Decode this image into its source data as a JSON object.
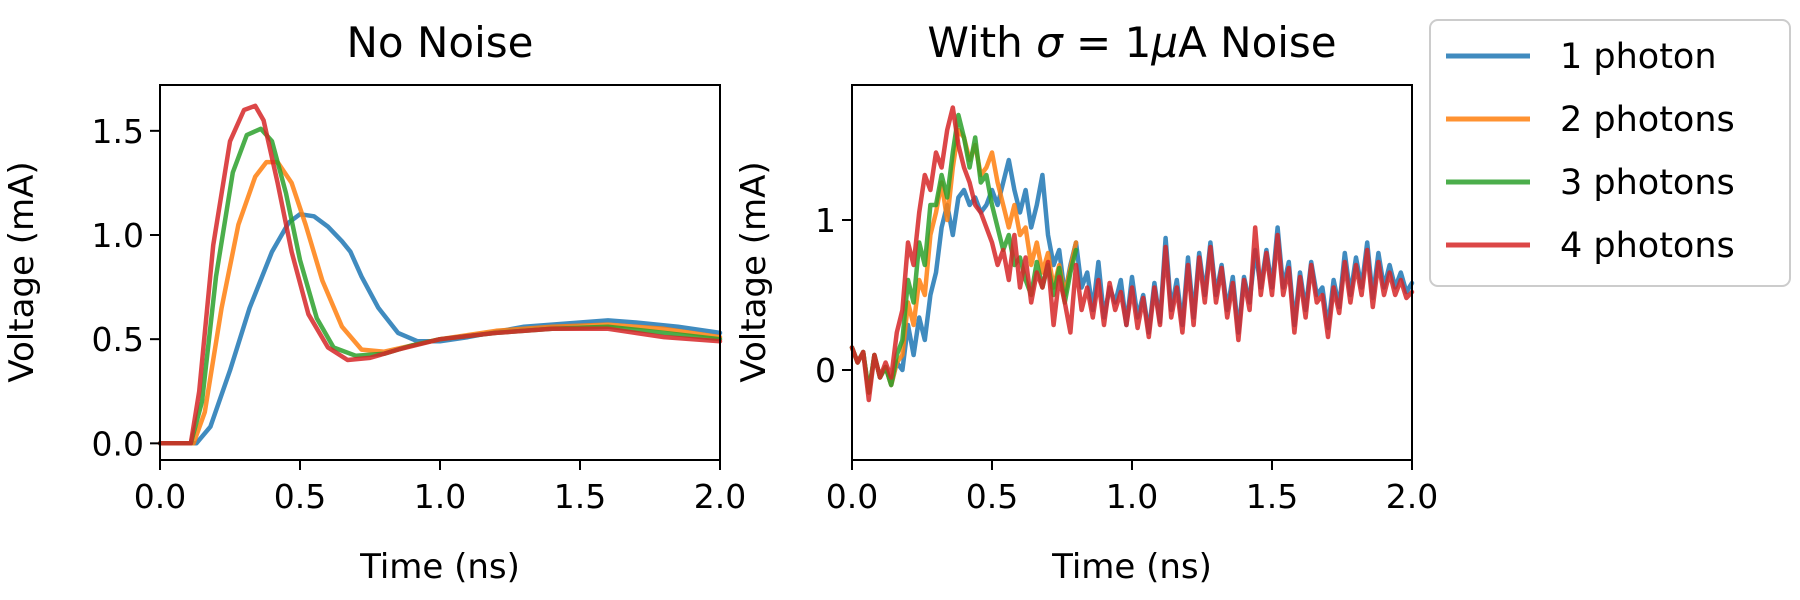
{
  "chart_data": [
    {
      "type": "line",
      "title": "No Noise",
      "xlabel": "Time (ns)",
      "ylabel": "Voltage (mA)",
      "xlim": [
        0,
        2.0
      ],
      "ylim": [
        -0.08,
        1.72
      ],
      "xticks": [
        0.0,
        0.5,
        1.0,
        1.5,
        2.0
      ],
      "xtick_labels": [
        "0.0",
        "0.5",
        "1.0",
        "1.5",
        "2.0"
      ],
      "yticks": [
        0.0,
        0.5,
        1.0,
        1.5
      ],
      "ytick_labels": [
        "0.0",
        "0.5",
        "1.0",
        "1.5"
      ],
      "grid": false,
      "series": [
        {
          "name": "1 photon",
          "color": "#1f77b4",
          "x": [
            0,
            0.13,
            0.18,
            0.25,
            0.32,
            0.4,
            0.46,
            0.5,
            0.55,
            0.6,
            0.65,
            0.68,
            0.72,
            0.78,
            0.85,
            0.92,
            1.0,
            1.1,
            1.3,
            1.5,
            1.6,
            1.7,
            1.85,
            2.0
          ],
          "y": [
            0,
            0.0,
            0.08,
            0.35,
            0.65,
            0.92,
            1.06,
            1.1,
            1.09,
            1.04,
            0.97,
            0.92,
            0.8,
            0.65,
            0.53,
            0.49,
            0.49,
            0.51,
            0.56,
            0.58,
            0.59,
            0.58,
            0.56,
            0.53
          ]
        },
        {
          "name": "2 photons",
          "color": "#ff7f0e",
          "x": [
            0,
            0.12,
            0.16,
            0.22,
            0.28,
            0.34,
            0.38,
            0.42,
            0.47,
            0.52,
            0.58,
            0.65,
            0.72,
            0.8,
            0.9,
            1.0,
            1.2,
            1.4,
            1.6,
            1.8,
            2.0
          ],
          "y": [
            0,
            0.0,
            0.15,
            0.65,
            1.05,
            1.28,
            1.35,
            1.35,
            1.25,
            1.05,
            0.78,
            0.56,
            0.45,
            0.44,
            0.47,
            0.5,
            0.54,
            0.56,
            0.57,
            0.55,
            0.51
          ]
        },
        {
          "name": "3 photons",
          "color": "#2ca02c",
          "x": [
            0,
            0.11,
            0.15,
            0.2,
            0.26,
            0.31,
            0.36,
            0.4,
            0.45,
            0.5,
            0.56,
            0.62,
            0.7,
            0.8,
            0.9,
            1.0,
            1.2,
            1.4,
            1.6,
            1.8,
            2.0
          ],
          "y": [
            0,
            0.0,
            0.2,
            0.8,
            1.3,
            1.48,
            1.51,
            1.45,
            1.2,
            0.88,
            0.6,
            0.46,
            0.42,
            0.43,
            0.47,
            0.5,
            0.53,
            0.55,
            0.56,
            0.53,
            0.5
          ]
        },
        {
          "name": "4 photons",
          "color": "#d62728",
          "x": [
            0,
            0.11,
            0.14,
            0.19,
            0.25,
            0.3,
            0.34,
            0.37,
            0.42,
            0.47,
            0.53,
            0.6,
            0.67,
            0.75,
            0.85,
            1.0,
            1.2,
            1.4,
            1.6,
            1.8,
            2.0
          ],
          "y": [
            0,
            0.0,
            0.25,
            0.95,
            1.45,
            1.6,
            1.62,
            1.55,
            1.25,
            0.92,
            0.62,
            0.46,
            0.4,
            0.41,
            0.45,
            0.5,
            0.53,
            0.55,
            0.55,
            0.51,
            0.49
          ]
        }
      ]
    },
    {
      "type": "line",
      "title": "With",
      "title_sigma": "σ",
      "title_mid": " = 1",
      "title_mu": "μ",
      "title_end": "A Noise",
      "xlabel": "Time (ns)",
      "ylabel": "Voltage (mA)",
      "xlim": [
        0,
        2.0
      ],
      "ylim": [
        -0.6,
        1.9
      ],
      "xticks": [
        0.0,
        0.5,
        1.0,
        1.5,
        2.0
      ],
      "xtick_labels": [
        "0.0",
        "0.5",
        "1.0",
        "1.5",
        "2.0"
      ],
      "yticks": [
        0,
        1
      ],
      "ytick_labels": [
        "0",
        "1"
      ],
      "grid": false,
      "series": [
        {
          "name": "1 photon",
          "color": "#1f77b4",
          "x": [
            0,
            0.02,
            0.04,
            0.06,
            0.08,
            0.1,
            0.12,
            0.14,
            0.16,
            0.18,
            0.2,
            0.22,
            0.24,
            0.26,
            0.28,
            0.3,
            0.32,
            0.34,
            0.36,
            0.38,
            0.4,
            0.42,
            0.44,
            0.46,
            0.48,
            0.5,
            0.52,
            0.54,
            0.56,
            0.58,
            0.6,
            0.62,
            0.64,
            0.66,
            0.68,
            0.7,
            0.72,
            0.74,
            0.76,
            0.78,
            0.8,
            0.82,
            0.84,
            0.86,
            0.88,
            0.9,
            0.92,
            0.94,
            0.96,
            0.98,
            1.0,
            1.02,
            1.04,
            1.06,
            1.08,
            1.1,
            1.12,
            1.14,
            1.16,
            1.18,
            1.2,
            1.22,
            1.24,
            1.26,
            1.28,
            1.3,
            1.32,
            1.34,
            1.36,
            1.38,
            1.4,
            1.42,
            1.44,
            1.46,
            1.48,
            1.5,
            1.52,
            1.54,
            1.56,
            1.58,
            1.6,
            1.62,
            1.64,
            1.66,
            1.68,
            1.7,
            1.72,
            1.74,
            1.76,
            1.78,
            1.8,
            1.82,
            1.84,
            1.86,
            1.88,
            1.9,
            1.92,
            1.94,
            1.96,
            1.98,
            2.0
          ],
          "y": [
            0.15,
            0.05,
            0.12,
            -0.15,
            0.1,
            -0.05,
            0.02,
            -0.1,
            0.05,
            0.0,
            0.3,
            0.1,
            0.35,
            0.2,
            0.5,
            0.65,
            0.95,
            1.1,
            0.9,
            1.15,
            1.2,
            1.1,
            1.15,
            1.05,
            1.1,
            1.2,
            1.1,
            1.25,
            1.4,
            1.2,
            1.05,
            1.2,
            0.95,
            1.1,
            1.3,
            0.9,
            0.7,
            0.8,
            0.5,
            0.7,
            0.85,
            0.55,
            0.65,
            0.4,
            0.72,
            0.35,
            0.55,
            0.45,
            0.6,
            0.3,
            0.62,
            0.35,
            0.5,
            0.25,
            0.58,
            0.32,
            0.88,
            0.4,
            0.6,
            0.3,
            0.75,
            0.35,
            0.78,
            0.5,
            0.85,
            0.5,
            0.7,
            0.4,
            0.62,
            0.25,
            0.62,
            0.45,
            0.8,
            0.55,
            0.8,
            0.55,
            0.95,
            0.55,
            0.72,
            0.3,
            0.65,
            0.4,
            0.72,
            0.5,
            0.55,
            0.28,
            0.6,
            0.42,
            0.78,
            0.5,
            0.75,
            0.55,
            0.85,
            0.48,
            0.78,
            0.55,
            0.7,
            0.55,
            0.65,
            0.52,
            0.58
          ]
        },
        {
          "name": "2 photons",
          "color": "#ff7f0e",
          "x": [
            0,
            0.02,
            0.04,
            0.06,
            0.08,
            0.1,
            0.12,
            0.14,
            0.16,
            0.18,
            0.2,
            0.22,
            0.24,
            0.26,
            0.28,
            0.3,
            0.32,
            0.34,
            0.36,
            0.38,
            0.4,
            0.42,
            0.44,
            0.46,
            0.48,
            0.5,
            0.52,
            0.54,
            0.56,
            0.58,
            0.6,
            0.62,
            0.64,
            0.66,
            0.68,
            0.7,
            0.72,
            0.74,
            0.76,
            0.78,
            0.8
          ],
          "y": [
            0.15,
            0.05,
            0.12,
            -0.15,
            0.1,
            -0.05,
            0.02,
            -0.1,
            0.05,
            0.1,
            0.45,
            0.3,
            0.6,
            0.5,
            0.9,
            1.05,
            1.25,
            1.0,
            1.35,
            1.6,
            1.55,
            1.4,
            1.5,
            1.3,
            1.35,
            1.45,
            1.25,
            1.1,
            0.95,
            1.1,
            0.9,
            0.95,
            0.7,
            0.85,
            0.65,
            0.78,
            0.55,
            0.7,
            0.5,
            0.68,
            0.85
          ]
        },
        {
          "name": "3 photons",
          "color": "#2ca02c",
          "x": [
            0,
            0.02,
            0.04,
            0.06,
            0.08,
            0.1,
            0.12,
            0.14,
            0.16,
            0.18,
            0.2,
            0.22,
            0.24,
            0.26,
            0.28,
            0.3,
            0.32,
            0.34,
            0.36,
            0.38,
            0.4,
            0.42,
            0.44,
            0.46,
            0.48,
            0.5,
            0.52,
            0.54,
            0.56,
            0.58,
            0.6,
            0.62,
            0.64,
            0.66,
            0.68,
            0.7,
            0.72,
            0.74,
            0.76,
            0.78,
            0.8
          ],
          "y": [
            0.15,
            0.05,
            0.12,
            -0.15,
            0.1,
            -0.05,
            0.02,
            -0.1,
            0.1,
            0.2,
            0.6,
            0.45,
            0.85,
            0.7,
            1.1,
            1.1,
            1.3,
            1.15,
            1.45,
            1.7,
            1.55,
            1.35,
            1.55,
            1.25,
            1.3,
            1.1,
            0.95,
            0.8,
            0.9,
            0.7,
            0.75,
            0.6,
            0.5,
            0.72,
            0.55,
            0.7,
            0.5,
            0.68,
            0.45,
            0.65,
            0.8
          ]
        },
        {
          "name": "4 photons",
          "color": "#d62728",
          "x": [
            0,
            0.02,
            0.04,
            0.06,
            0.08,
            0.1,
            0.12,
            0.14,
            0.16,
            0.18,
            0.2,
            0.22,
            0.24,
            0.26,
            0.28,
            0.3,
            0.32,
            0.34,
            0.36,
            0.38,
            0.4,
            0.42,
            0.44,
            0.46,
            0.48,
            0.5,
            0.52,
            0.54,
            0.56,
            0.58,
            0.6,
            0.62,
            0.64,
            0.66,
            0.68,
            0.7,
            0.72,
            0.74,
            0.76,
            0.78,
            0.8,
            0.82,
            0.84,
            0.86,
            0.88,
            0.9,
            0.92,
            0.94,
            0.96,
            0.98,
            1.0,
            1.02,
            1.04,
            1.06,
            1.08,
            1.1,
            1.12,
            1.14,
            1.16,
            1.18,
            1.2,
            1.22,
            1.24,
            1.26,
            1.28,
            1.3,
            1.32,
            1.34,
            1.36,
            1.38,
            1.4,
            1.42,
            1.44,
            1.46,
            1.48,
            1.5,
            1.52,
            1.54,
            1.56,
            1.58,
            1.6,
            1.62,
            1.64,
            1.66,
            1.68,
            1.7,
            1.72,
            1.74,
            1.76,
            1.78,
            1.8,
            1.82,
            1.84,
            1.86,
            1.88,
            1.9,
            1.92,
            1.94,
            1.96,
            1.98,
            2.0
          ],
          "y": [
            0.15,
            0.05,
            0.12,
            -0.2,
            0.1,
            -0.05,
            0.05,
            -0.05,
            0.25,
            0.4,
            0.85,
            0.7,
            1.05,
            1.3,
            1.2,
            1.45,
            1.35,
            1.6,
            1.75,
            1.5,
            1.35,
            1.25,
            1.1,
            1.05,
            0.95,
            0.85,
            0.7,
            0.8,
            0.6,
            0.9,
            0.55,
            0.75,
            0.45,
            0.65,
            0.55,
            0.72,
            0.3,
            0.62,
            0.45,
            0.25,
            0.7,
            0.4,
            0.55,
            0.35,
            0.6,
            0.3,
            0.58,
            0.4,
            0.52,
            0.3,
            0.55,
            0.28,
            0.48,
            0.22,
            0.55,
            0.3,
            0.82,
            0.35,
            0.55,
            0.25,
            0.7,
            0.3,
            0.75,
            0.45,
            0.82,
            0.45,
            0.68,
            0.35,
            0.58,
            0.2,
            0.6,
            0.4,
            0.95,
            0.5,
            0.78,
            0.5,
            0.9,
            0.5,
            0.68,
            0.25,
            0.62,
            0.35,
            0.7,
            0.45,
            0.5,
            0.22,
            0.55,
            0.38,
            0.72,
            0.45,
            0.7,
            0.5,
            0.8,
            0.42,
            0.72,
            0.5,
            0.65,
            0.5,
            0.6,
            0.48,
            0.52
          ]
        }
      ]
    }
  ],
  "legend": {
    "placement": "outside-right",
    "entries": [
      {
        "label": "1 photon",
        "color": "#1f77b4"
      },
      {
        "label": "2 photons",
        "color": "#ff7f0e"
      },
      {
        "label": "3 photons",
        "color": "#2ca02c"
      },
      {
        "label": "4 photons",
        "color": "#d62728"
      }
    ]
  }
}
